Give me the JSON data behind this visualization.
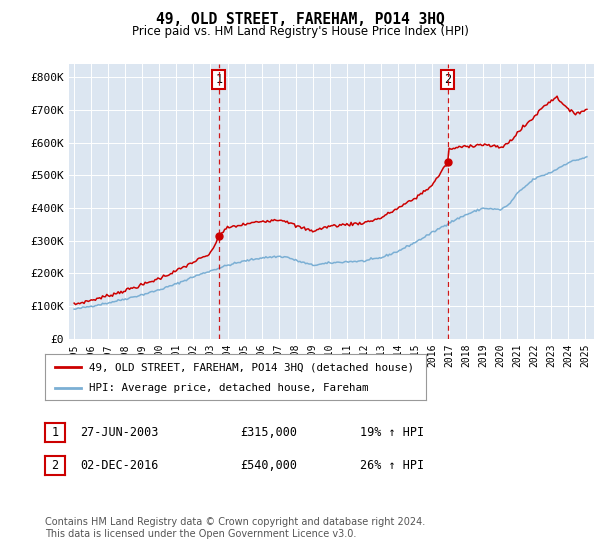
{
  "title": "49, OLD STREET, FAREHAM, PO14 3HQ",
  "subtitle": "Price paid vs. HM Land Registry's House Price Index (HPI)",
  "ylabel_ticks": [
    "£0",
    "£100K",
    "£200K",
    "£300K",
    "£400K",
    "£500K",
    "£600K",
    "£700K",
    "£800K"
  ],
  "ytick_values": [
    0,
    100000,
    200000,
    300000,
    400000,
    500000,
    600000,
    700000,
    800000
  ],
  "ylim": [
    0,
    850000
  ],
  "bg_color": "#dce6f1",
  "red_color": "#cc0000",
  "blue_color": "#7bafd4",
  "sale1_year": 2003.49,
  "sale1_price": 315000,
  "sale2_year": 2016.92,
  "sale2_price": 540000,
  "legend_label1": "49, OLD STREET, FAREHAM, PO14 3HQ (detached house)",
  "legend_label2": "HPI: Average price, detached house, Fareham",
  "table_entries": [
    {
      "num": "1",
      "date": "27-JUN-2003",
      "price": "£315,000",
      "pct": "19% ↑ HPI"
    },
    {
      "num": "2",
      "date": "02-DEC-2016",
      "price": "£540,000",
      "pct": "26% ↑ HPI"
    }
  ],
  "footnote": "Contains HM Land Registry data © Crown copyright and database right 2024.\nThis data is licensed under the Open Government Licence v3.0.",
  "xtick_years": [
    1995,
    1996,
    1997,
    1998,
    1999,
    2000,
    2001,
    2002,
    2003,
    2004,
    2005,
    2006,
    2007,
    2008,
    2009,
    2010,
    2011,
    2012,
    2013,
    2014,
    2015,
    2016,
    2017,
    2018,
    2019,
    2020,
    2021,
    2022,
    2023,
    2024,
    2025
  ]
}
